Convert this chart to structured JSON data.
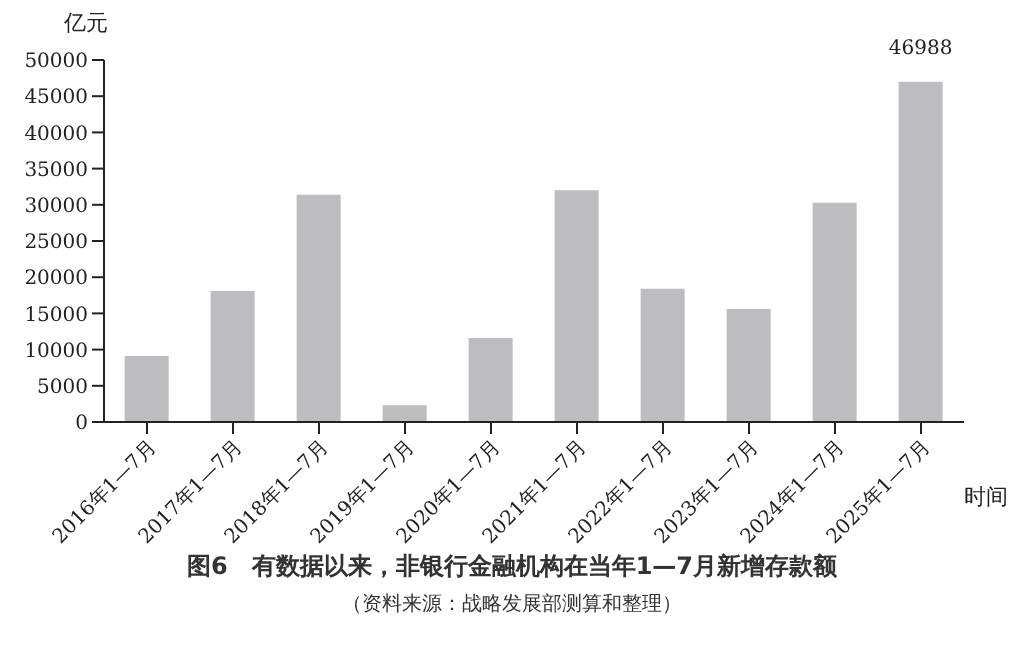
{
  "chart_data": {
    "type": "bar",
    "title": "图6　有数据以来，非银行金融机构在当年1—7月新增存款额",
    "annotations": [
      "（资料来源：战略发展部测算和整理）"
    ],
    "xlabel": "时间",
    "ylabel": "亿元",
    "categories": [
      "2016年1—7月",
      "2017年1—7月",
      "2018年1—7月",
      "2019年1—7月",
      "2020年1—7月",
      "2021年1—7月",
      "2022年1—7月",
      "2023年1—7月",
      "2024年1—7月",
      "2025年1—7月"
    ],
    "values": [
      9100,
      18100,
      31400,
      2300,
      11600,
      32000,
      18400,
      15600,
      30300,
      46988
    ],
    "value_labels": [
      null,
      null,
      null,
      null,
      null,
      null,
      null,
      null,
      null,
      "46988"
    ],
    "color": "#bcbdc0",
    "ylim": [
      0,
      50000
    ],
    "yticks": [
      0,
      5000,
      10000,
      15000,
      20000,
      25000,
      30000,
      35000,
      40000,
      45000,
      50000
    ],
    "grid": false,
    "legend": false
  }
}
